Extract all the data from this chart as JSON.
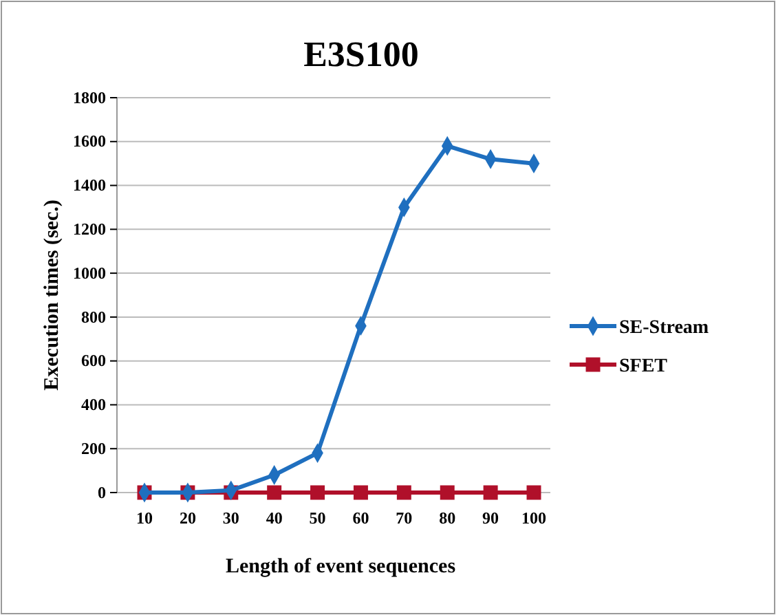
{
  "chart_data": {
    "type": "line",
    "title": "E3S100",
    "xlabel": "Length of event sequences",
    "ylabel": "Execution times (sec.)",
    "categories": [
      "10",
      "20",
      "30",
      "40",
      "50",
      "60",
      "70",
      "80",
      "90",
      "100"
    ],
    "series": [
      {
        "name": "SE-Stream",
        "color": "#1f6fbf",
        "marker": "diamond",
        "values": [
          0,
          0,
          10,
          80,
          180,
          760,
          1300,
          1580,
          1520,
          1500
        ]
      },
      {
        "name": "SFET",
        "color": "#b0102a",
        "marker": "square",
        "values": [
          0,
          0,
          0,
          0,
          0,
          0,
          0,
          0,
          0,
          0
        ]
      }
    ],
    "ylim": [
      0,
      1800
    ],
    "yticks": [
      0,
      200,
      400,
      600,
      800,
      1000,
      1200,
      1400,
      1600,
      1800
    ],
    "grid": "y",
    "legend": "right"
  }
}
